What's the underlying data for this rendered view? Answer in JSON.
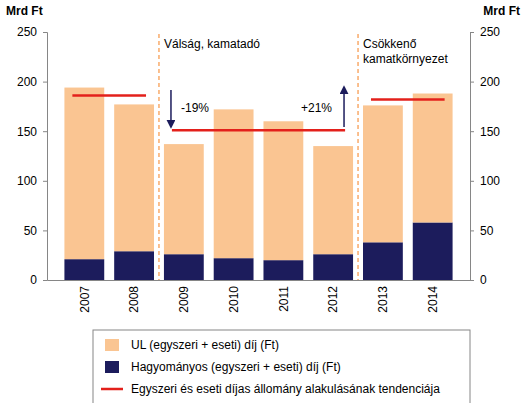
{
  "chart_data": {
    "type": "bar",
    "stacked": true,
    "categories": [
      "2007",
      "2008",
      "2009",
      "2010",
      "2011",
      "2012",
      "2013",
      "2014"
    ],
    "series": [
      {
        "name": "UL (egyszeri + eseti) díj (Ft)",
        "color": "#fac592",
        "values": [
          173,
          148,
          111,
          150,
          140,
          109,
          138,
          130
        ]
      },
      {
        "name": "Hagyományos (egyszeri + eseti) díj (Ft)",
        "color": "#1c1c5c",
        "values": [
          21,
          29,
          26,
          22,
          20,
          26,
          38,
          58
        ]
      },
      {
        "name": "Egyszeri és eseti díjas állomány alakulásának tendenciája",
        "color": "#e3201b",
        "type": "line",
        "line_style": "solid",
        "values": [
          186,
          186,
          151,
          151,
          151,
          151,
          182,
          182
        ]
      }
    ],
    "y_label": "Mrd Ft",
    "y2_label": "Mrd Ft",
    "ylim": [
      0,
      250
    ],
    "yticks": [
      0,
      50,
      100,
      150,
      200,
      250
    ],
    "y2lim": [
      0,
      250
    ],
    "y2ticks": [
      0,
      50,
      100,
      150,
      200,
      250
    ],
    "annotations": [
      {
        "lines": [
          "Válság, kamatadó"
        ]
      },
      {
        "lines": [
          "-19%"
        ]
      },
      {
        "lines": [
          "+21%"
        ]
      },
      {
        "lines": [
          "Csökkenő",
          "kamatkörnyezet"
        ]
      }
    ],
    "legend": "bottom",
    "grid": false
  }
}
